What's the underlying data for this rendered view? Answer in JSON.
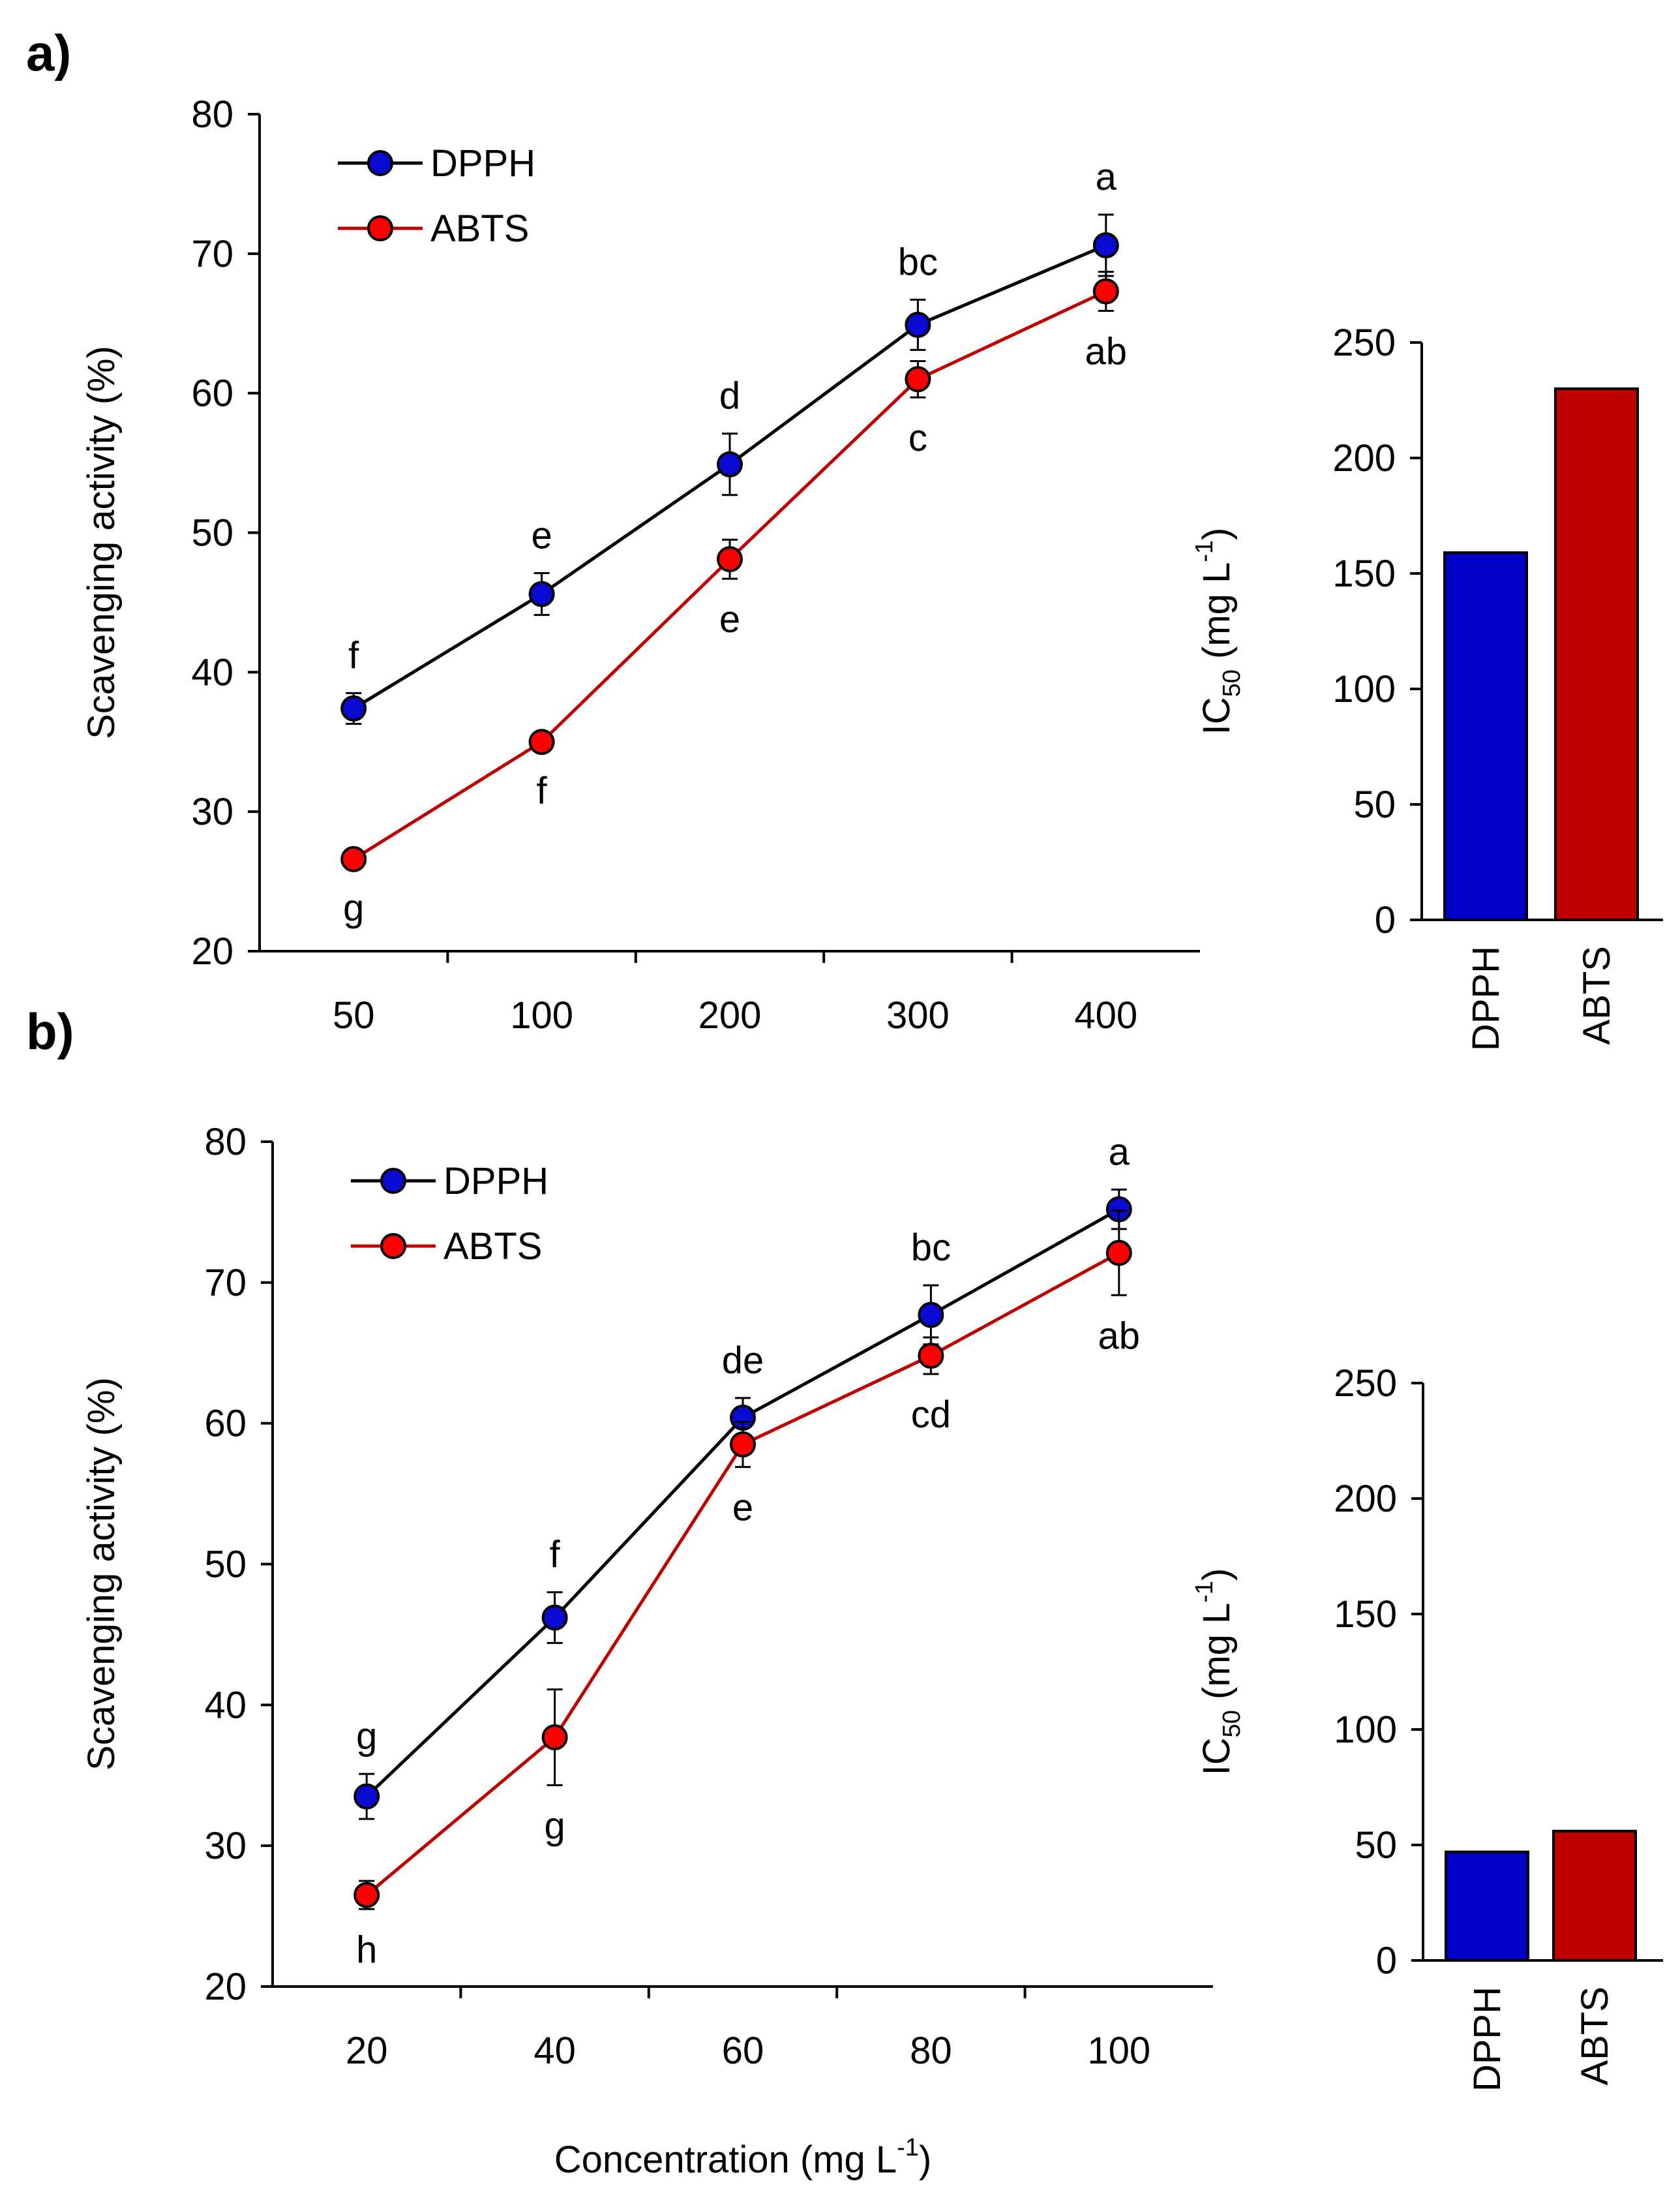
{
  "chart_data": [
    {
      "id": "a_line",
      "panel_label": "a)",
      "type": "line",
      "categories": [
        "50",
        "100",
        "200",
        "300",
        "400"
      ],
      "ylabel": "Scavenging activity (%)",
      "xlabel": "",
      "ylim": [
        20,
        80
      ],
      "yticks": [
        20,
        30,
        40,
        50,
        60,
        70,
        80
      ],
      "legend": "top-left",
      "series": [
        {
          "name": "DPPH",
          "values": [
            37.4,
            45.6,
            54.9,
            64.9,
            70.6
          ],
          "errors": [
            1.1,
            1.5,
            2.2,
            1.8,
            2.2
          ],
          "letters": [
            "f",
            "e",
            "d",
            "bc",
            "a"
          ],
          "letter_pos": "above",
          "color": "#0a0ad2",
          "line": "#000000"
        },
        {
          "name": "ABTS",
          "values": [
            26.6,
            35.0,
            48.1,
            61.0,
            67.3
          ],
          "errors": [
            0.6,
            0.6,
            1.4,
            1.3,
            1.4
          ],
          "letters": [
            "g",
            "f",
            "e",
            "c",
            "ab"
          ],
          "letter_pos": "below",
          "color": "#ff0000",
          "line": "#c00000"
        }
      ]
    },
    {
      "id": "a_bar",
      "type": "bar",
      "categories": [
        "DPPH",
        "ABTS"
      ],
      "values": [
        159,
        230
      ],
      "colors": [
        "#0000c8",
        "#c00000"
      ],
      "ylabel_main": "IC",
      "ylabel_sub": "50",
      "ylabel_unit": " (mg L",
      "ylabel_exp": "-1",
      "ylabel_end": ")",
      "ylim": [
        0,
        250
      ],
      "yticks": [
        0,
        50,
        100,
        150,
        200,
        250
      ]
    },
    {
      "id": "b_line",
      "panel_label": "b)",
      "type": "line",
      "categories": [
        "20",
        "40",
        "60",
        "80",
        "100"
      ],
      "ylabel": "Scavenging activity (%)",
      "xlabel_main": "Concentration (mg L",
      "xlabel_exp": "-1",
      "xlabel_end": ")",
      "ylim": [
        20,
        80
      ],
      "yticks": [
        20,
        30,
        40,
        50,
        60,
        70,
        80
      ],
      "legend": "top-left",
      "series": [
        {
          "name": "DPPH",
          "values": [
            33.5,
            46.2,
            60.4,
            67.7,
            75.2
          ],
          "errors": [
            1.6,
            1.8,
            1.4,
            2.1,
            1.4
          ],
          "letters": [
            "g",
            "f",
            "de",
            "bc",
            "a"
          ],
          "letter_pos": "above",
          "color": "#0a0ad2",
          "line": "#000000"
        },
        {
          "name": "ABTS",
          "values": [
            26.5,
            37.7,
            58.5,
            64.8,
            72.1
          ],
          "errors": [
            1.0,
            3.4,
            1.6,
            1.3,
            3.0
          ],
          "letters": [
            "h",
            "g",
            "e",
            "cd",
            "ab"
          ],
          "letter_pos": "below",
          "color": "#ff0000",
          "line": "#c00000"
        }
      ]
    },
    {
      "id": "b_bar",
      "type": "bar",
      "categories": [
        "DPPH",
        "ABTS"
      ],
      "values": [
        47,
        56
      ],
      "colors": [
        "#0000c8",
        "#c00000"
      ],
      "ylabel_main": "IC",
      "ylabel_sub": "50",
      "ylabel_unit": " (mg L",
      "ylabel_exp": "-1",
      "ylabel_end": ")",
      "ylim": [
        0,
        250
      ],
      "yticks": [
        0,
        50,
        100,
        150,
        200,
        250
      ]
    }
  ]
}
